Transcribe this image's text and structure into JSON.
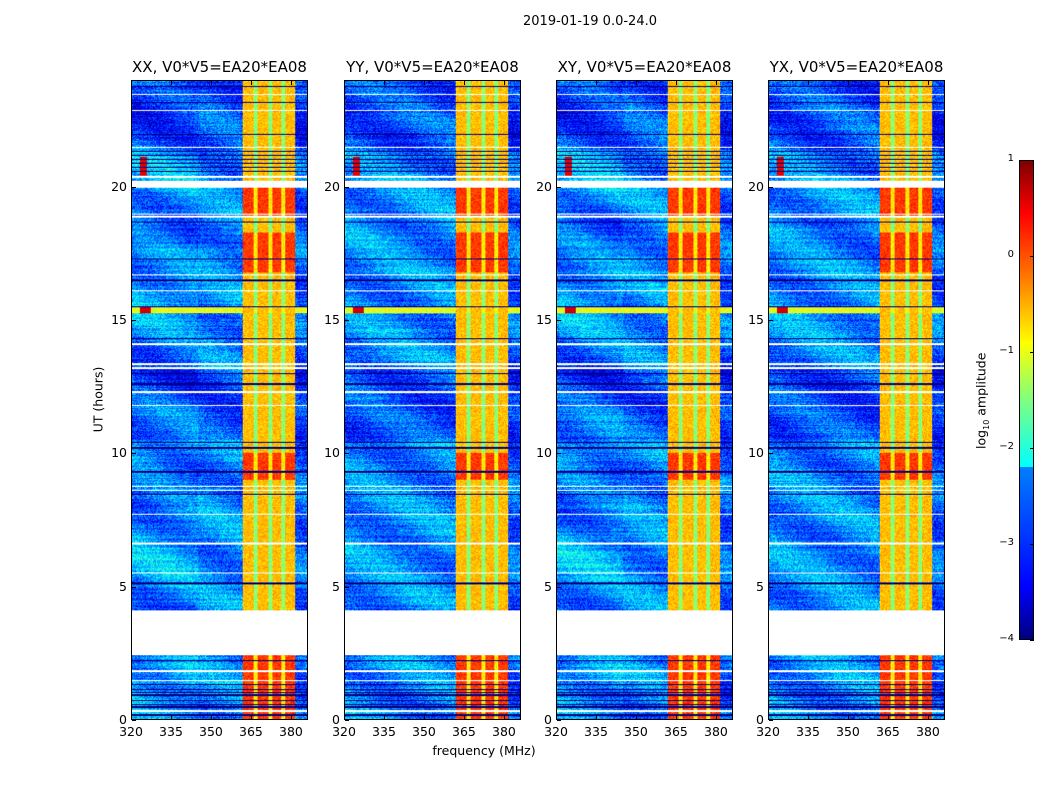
{
  "figure": {
    "suptitle": "2019-01-19 0.0-24.0",
    "xlabel": "frequency (MHz)",
    "ylabel": "UT (hours)"
  },
  "chart_data": {
    "type": "heatmap",
    "panels": [
      {
        "title": "XX, V0*V5=EA20*EA08"
      },
      {
        "title": "YY, V0*V5=EA20*EA08"
      },
      {
        "title": "XY, V0*V5=EA20*EA08"
      },
      {
        "title": "YX, V0*V5=EA20*EA08"
      }
    ],
    "xlim": [
      320,
      386.4
    ],
    "ylim": [
      0,
      24
    ],
    "xticks": [
      320,
      335,
      350,
      365,
      380
    ],
    "xtick_labels": [
      "320",
      "335",
      "350",
      "365",
      "380"
    ],
    "yticks": [
      0,
      5,
      10,
      15,
      20
    ],
    "ytick_labels": [
      "0",
      "5",
      "10",
      "15",
      "20"
    ],
    "colorbar": {
      "label_main": "log",
      "label_sub": "10",
      "label_rest": " amplitude",
      "range": [
        -4,
        1
      ],
      "ticks": [
        1,
        0,
        -1,
        -2,
        -3,
        -4
      ],
      "tick_labels": [
        "1",
        "0",
        "−1",
        "−2",
        "−3",
        "−4"
      ],
      "colormap": "jet"
    },
    "background_log_amp": -2.7,
    "rfi_band_mhz": [
      362,
      382
    ],
    "rfi_band_gaps_mhz": [
      367,
      372.5,
      377.5
    ],
    "flagged_ut_ranges": [
      [
        2.4,
        4.1
      ],
      [
        20.0,
        20.25
      ]
    ],
    "strong_rfi_ut_ranges": [
      [
        9.0,
        10.0
      ],
      [
        16.8,
        18.3
      ],
      [
        18.9,
        20.0
      ],
      [
        0.0,
        2.4
      ]
    ],
    "transient_event_ut": 15.4
  }
}
